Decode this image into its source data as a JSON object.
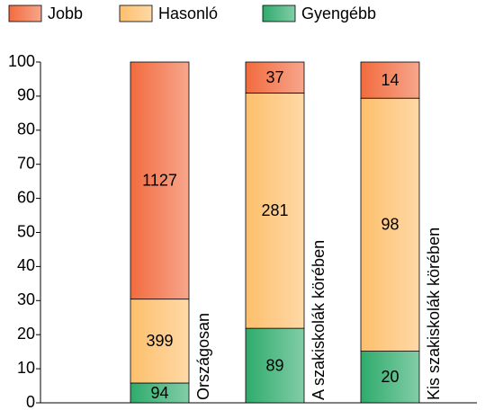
{
  "chart_data": {
    "type": "bar",
    "stacking": "percent",
    "categories": [
      "Országosan",
      "A szakiskolák körében",
      "Kis szakiskolák körében"
    ],
    "series": [
      {
        "name": "Jobb",
        "color": "#f26b3f",
        "values": [
          1127,
          37,
          14
        ]
      },
      {
        "name": "Hasonló",
        "color": "#fdbf6c",
        "values": [
          399,
          281,
          98
        ]
      },
      {
        "name": "Gyengébb",
        "color": "#2fab6c",
        "values": [
          94,
          89,
          20
        ]
      }
    ],
    "ylim": [
      0,
      100
    ],
    "yticks": [
      0,
      10,
      20,
      30,
      40,
      50,
      60,
      70,
      80,
      90,
      100
    ],
    "legend": "top"
  }
}
